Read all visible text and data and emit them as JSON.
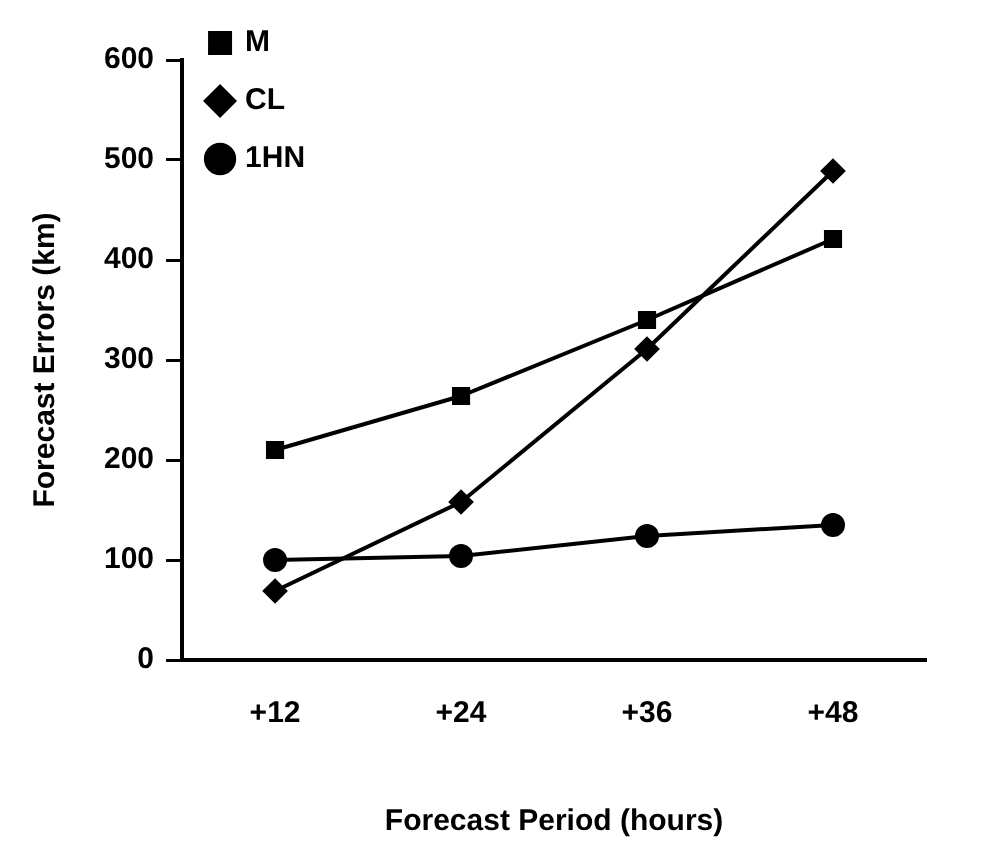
{
  "chart_data": {
    "type": "line",
    "xlabel": "Forecast Period (hours)",
    "ylabel": "Forecast Errors (km)",
    "categories": [
      "+12",
      "+24",
      "+36",
      "+48"
    ],
    "series": [
      {
        "name": "M",
        "color": "#000000",
        "marker": "square",
        "values": [
          210,
          264,
          340,
          421
        ]
      },
      {
        "name": "CL",
        "color": "#000000",
        "marker": "diamond",
        "values": [
          69,
          158,
          311,
          489
        ]
      },
      {
        "name": "1HN",
        "color": "#000000",
        "marker": "circle",
        "values": [
          100,
          104,
          124,
          135
        ]
      }
    ],
    "ylim": [
      0,
      600
    ],
    "yticks": [
      0,
      100,
      200,
      300,
      400,
      500,
      600
    ],
    "grid": false,
    "legend": "top left",
    "line_style": "solid"
  }
}
